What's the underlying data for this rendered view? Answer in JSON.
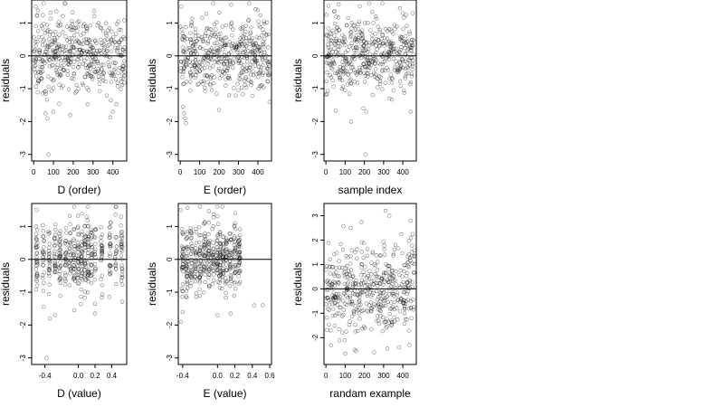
{
  "chart_data": [
    {
      "type": "scatter",
      "xlabel": "D (order)",
      "ylabel": "residuals",
      "xlim": [
        -10,
        470
      ],
      "ylim": [
        -3.2,
        1.7
      ],
      "xticks": [
        0,
        100,
        200,
        300,
        400
      ],
      "xtick_labels": [
        "0",
        "100",
        "200",
        "300",
        "400"
      ],
      "yticks": [
        -3,
        -2,
        -1,
        0,
        1
      ],
      "ytick_labels": [
        "-3",
        "-2",
        "-1",
        "0",
        "1"
      ],
      "reference_line_y": 0,
      "n_points": 460,
      "x_range": [
        0,
        460
      ],
      "y_center": 0.05,
      "y_spread": 0.55,
      "outliers": [
        [
          60,
          -1.75
        ],
        [
          70,
          -1.9
        ],
        [
          100,
          -1.7
        ],
        [
          75,
          -3.0
        ],
        [
          400,
          -1.7
        ],
        [
          390,
          -1.35
        ],
        [
          160,
          1.6
        ],
        [
          10,
          1.5
        ],
        [
          115,
          1.35
        ]
      ]
    },
    {
      "type": "scatter",
      "xlabel": "E (order)",
      "ylabel": "residuals",
      "xlim": [
        -10,
        470
      ],
      "ylim": [
        -3.2,
        1.7
      ],
      "xticks": [
        0,
        100,
        200,
        300,
        400
      ],
      "xtick_labels": [
        "0",
        "100",
        "200",
        "300",
        "400"
      ],
      "yticks": [
        -3,
        -2,
        -1,
        0,
        1
      ],
      "ytick_labels": [
        "-3",
        "-2",
        "-1",
        "0",
        "1"
      ],
      "reference_line_y": 0,
      "n_points": 460,
      "x_range": [
        0,
        460
      ],
      "y_center": 0.05,
      "y_spread": 0.55,
      "outliers": [
        [
          20,
          -1.75
        ],
        [
          25,
          -1.9
        ],
        [
          30,
          -2.05
        ],
        [
          15,
          -1.55
        ],
        [
          200,
          -1.65
        ],
        [
          460,
          -1.4
        ],
        [
          170,
          1.6
        ],
        [
          5,
          1.5
        ],
        [
          400,
          1.4
        ]
      ]
    },
    {
      "type": "scatter",
      "xlabel": "sample index",
      "ylabel": "residuals",
      "xlim": [
        -10,
        470
      ],
      "ylim": [
        -3.2,
        1.7
      ],
      "xticks": [
        0,
        100,
        200,
        300,
        400
      ],
      "xtick_labels": [
        "0",
        "100",
        "200",
        "300",
        "400"
      ],
      "yticks": [
        -3,
        -2,
        -1,
        0,
        1
      ],
      "ytick_labels": [
        "-3",
        "-2",
        "-1",
        "0",
        "1"
      ],
      "reference_line_y": 0,
      "n_points": 460,
      "x_range": [
        0,
        460
      ],
      "y_center": 0.05,
      "y_spread": 0.55,
      "outliers": [
        [
          205,
          -3.0
        ],
        [
          210,
          -1.7
        ],
        [
          195,
          -1.6
        ],
        [
          130,
          -2.0
        ],
        [
          100,
          -1.05
        ],
        [
          330,
          -1.3
        ],
        [
          225,
          1.6
        ],
        [
          385,
          1.45
        ],
        [
          400,
          1.3
        ]
      ]
    },
    {
      "type": "scatter",
      "xlabel": "D (value)",
      "ylabel": "residuals",
      "xlim": [
        -0.56,
        0.58
      ],
      "ylim": [
        -3.2,
        1.7
      ],
      "xticks": [
        -0.4,
        0.0,
        0.2,
        0.4
      ],
      "xtick_labels": [
        "-0.4",
        "0.0",
        "0.2",
        "0.4"
      ],
      "yticks": [
        -3,
        -2,
        -1,
        0,
        1
      ],
      "ytick_labels": [
        "-3",
        "-2",
        "-1",
        "0",
        "1"
      ],
      "reference_line_y": 0,
      "n_points": 460,
      "x_columns": [
        -0.5,
        -0.42,
        -0.35,
        -0.28,
        -0.22,
        -0.15,
        -0.1,
        -0.05,
        0.0,
        0.04,
        0.08,
        0.12,
        0.16,
        0.2,
        0.28,
        0.38,
        0.45,
        0.52
      ],
      "y_center": 0.05,
      "y_spread": 0.55,
      "outliers": [
        [
          -0.38,
          -3.0
        ],
        [
          -0.34,
          -1.8
        ],
        [
          -0.28,
          -1.7
        ],
        [
          0.2,
          -1.65
        ],
        [
          0.2,
          -1.35
        ],
        [
          -0.05,
          1.6
        ],
        [
          -0.5,
          1.5
        ],
        [
          0.1,
          1.3
        ]
      ]
    },
    {
      "type": "scatter",
      "xlabel": "E (value)",
      "ylabel": "residuals",
      "xlim": [
        -0.45,
        0.62
      ],
      "ylim": [
        -3.2,
        1.7
      ],
      "xticks": [
        -0.4,
        0.0,
        0.2,
        0.4,
        0.6
      ],
      "xtick_labels": [
        "-0.4",
        "0.0",
        "0.2",
        "0.4",
        "0.6"
      ],
      "yticks": [
        -3,
        -2,
        -1,
        0,
        1
      ],
      "ytick_labels": [
        "-3",
        "-2",
        "-1",
        "0",
        "1"
      ],
      "reference_line_y": 0,
      "n_points": 460,
      "x_columns": [
        -0.4,
        -0.35,
        -0.3,
        -0.25,
        -0.2,
        -0.15,
        -0.1,
        -0.05,
        0.0,
        0.03,
        0.06,
        0.1,
        0.15,
        0.2,
        0.25
      ],
      "y_center": 0.05,
      "y_spread": 0.55,
      "outliers": [
        [
          -0.42,
          -1.9
        ],
        [
          -0.4,
          -1.6
        ],
        [
          0.42,
          -1.4
        ],
        [
          0.52,
          -1.4
        ],
        [
          0.15,
          -1.65
        ],
        [
          0.0,
          -1.7
        ],
        [
          -0.42,
          1.5
        ],
        [
          0.0,
          1.6
        ]
      ]
    },
    {
      "type": "scatter",
      "xlabel": "randam example",
      "ylabel": "residuals",
      "xlim": [
        -10,
        470
      ],
      "ylim": [
        -3.1,
        3.5
      ],
      "xticks": [
        0,
        100,
        200,
        300,
        400
      ],
      "xtick_labels": [
        "0",
        "100",
        "200",
        "300",
        "400"
      ],
      "yticks": [
        -2,
        -1,
        0,
        1,
        2,
        3
      ],
      "ytick_labels": [
        "-2",
        "-1",
        "0",
        "1",
        "2",
        "3"
      ],
      "reference_line_y": 0,
      "n_points": 460,
      "x_range": [
        0,
        460
      ],
      "y_center": 0.0,
      "y_spread": 1.0,
      "outliers": [
        [
          310,
          3.2
        ],
        [
          330,
          3.0
        ],
        [
          440,
          2.8
        ],
        [
          250,
          -2.6
        ],
        [
          320,
          -2.45
        ],
        [
          380,
          -2.4
        ],
        [
          150,
          -2.5
        ]
      ]
    }
  ]
}
